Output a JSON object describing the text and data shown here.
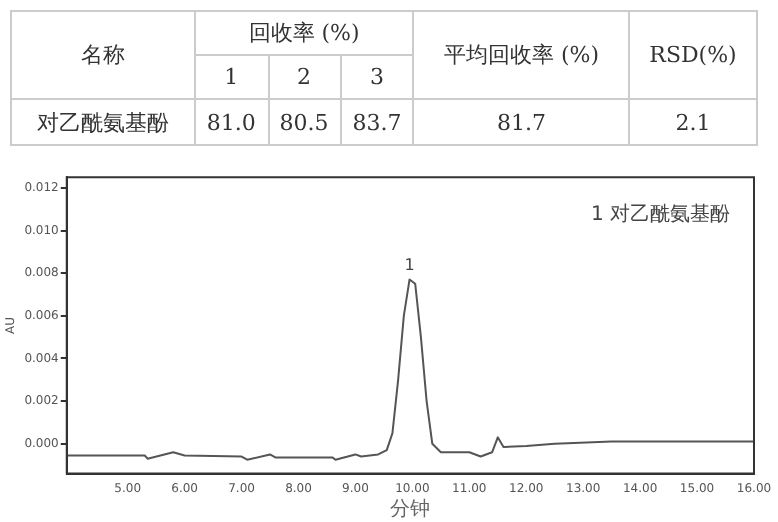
{
  "chart_data": [
    {
      "type": "other",
      "annotations": [
        "名称",
        "回收率 (%)",
        "1",
        "2",
        "3",
        "平均回收率 (%)",
        "RSD(%)",
        "对乙酰氨基酚",
        "81.0",
        "80.5",
        "83.7",
        "81.7",
        "2.1"
      ]
    },
    {
      "type": "line",
      "xlabel": "分钟",
      "ylabel": "AU",
      "color": "#555555",
      "marker": "none",
      "grid": false,
      "legend": false,
      "x": [
        3.93,
        5.3,
        5.35,
        5.8,
        6.0,
        7.0,
        7.1,
        7.5,
        7.6,
        8.6,
        8.65,
        9.0,
        9.1,
        9.4,
        9.55,
        9.65,
        9.75,
        9.85,
        9.95,
        10.05,
        10.15,
        10.25,
        10.35,
        10.5,
        11.0,
        11.2,
        11.4,
        11.5,
        11.6,
        12.0,
        12.5,
        13.5,
        15.0,
        16.0
      ],
      "values": [
        -0.00055,
        -0.00055,
        -0.0007,
        -0.0004,
        -0.00055,
        -0.0006,
        -0.00075,
        -0.0005,
        -0.00065,
        -0.00065,
        -0.00075,
        -0.0005,
        -0.0006,
        -0.0005,
        -0.0003,
        0.0005,
        0.003,
        0.006,
        0.0077,
        0.0075,
        0.005,
        0.002,
        0.0,
        -0.0004,
        -0.0004,
        -0.0006,
        -0.0004,
        0.0003,
        -0.00015,
        -0.0001,
        0.0,
        0.0001,
        0.0001,
        0.0001
      ],
      "xlim": [
        3.93,
        16.0
      ],
      "xticks": [
        {
          "value": 5,
          "label": "5.00"
        },
        {
          "value": 6,
          "label": "6.00"
        },
        {
          "value": 7,
          "label": "7.00"
        },
        {
          "value": 8,
          "label": "8.00"
        },
        {
          "value": 9,
          "label": "9.00"
        },
        {
          "value": 10,
          "label": "10.00"
        },
        {
          "value": 11,
          "label": "11.00"
        },
        {
          "value": 12,
          "label": "12.00"
        },
        {
          "value": 13,
          "label": "13.00"
        },
        {
          "value": 14,
          "label": "14.00"
        },
        {
          "value": 15,
          "label": "15.00"
        },
        {
          "value": 16,
          "label": "16.00"
        }
      ],
      "ylim": [
        -0.0014,
        0.0125
      ],
      "yticks": [
        {
          "value": 0,
          "label": "0.000"
        },
        {
          "value": 0.002,
          "label": "0.002"
        },
        {
          "value": 0.004,
          "label": "0.004"
        },
        {
          "value": 0.006,
          "label": "0.006"
        },
        {
          "value": 0.008,
          "label": "0.008"
        },
        {
          "value": 0.01,
          "label": "0.010"
        },
        {
          "value": 0.012,
          "label": "0.012"
        }
      ],
      "annotations": [
        {
          "text": "1",
          "x": 9.95,
          "y": 0.0077
        },
        "1 对乙酰氨基酚"
      ]
    }
  ]
}
